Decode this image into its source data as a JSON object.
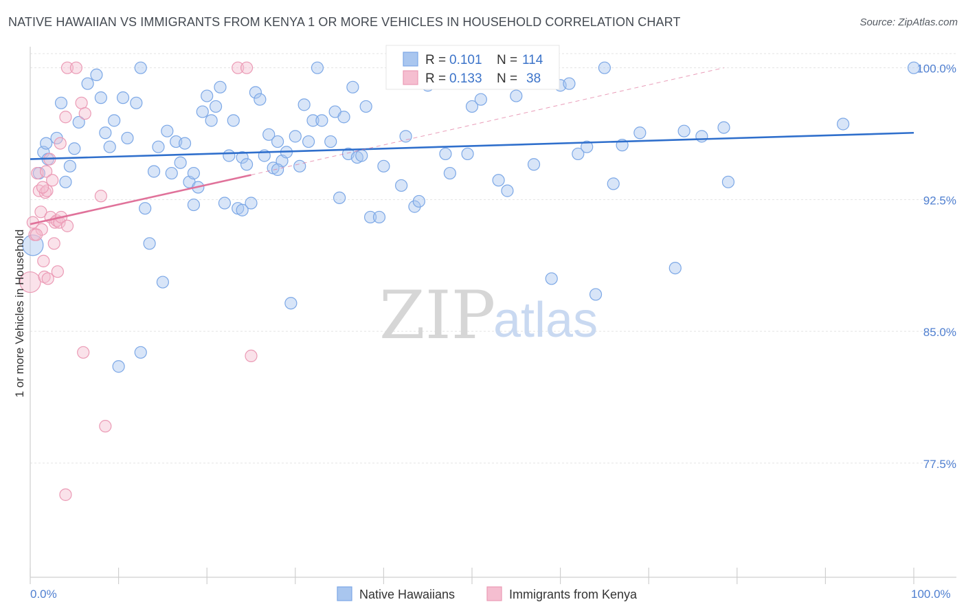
{
  "header": {
    "title": "NATIVE HAWAIIAN VS IMMIGRANTS FROM KENYA 1 OR MORE VEHICLES IN HOUSEHOLD CORRELATION CHART",
    "source": "Source: ZipAtlas.com"
  },
  "watermark": {
    "zip": "ZIP",
    "atlas": "atlas"
  },
  "chart_data": {
    "type": "scatter",
    "title": "NATIVE HAWAIIAN VS IMMIGRANTS FROM KENYA 1 OR MORE VEHICLES IN HOUSEHOLD CORRELATION CHART",
    "xlabel": "",
    "ylabel": "1 or more Vehicles in Household",
    "xlim": [
      0,
      100
    ],
    "ylim": [
      71.0,
      101.2
    ],
    "x_tick_labels": {
      "min": "0.0%",
      "max": "100.0%"
    },
    "y_ticks": [
      {
        "value": 100.0,
        "label": "100.0%"
      },
      {
        "value": 92.5,
        "label": "92.5%"
      },
      {
        "value": 85.0,
        "label": "85.0%"
      },
      {
        "value": 77.5,
        "label": "77.5%"
      }
    ],
    "legend": {
      "rows": [
        {
          "r_label": "R =",
          "r_value": "0.101",
          "n_label": "N =",
          "n_value": "114"
        },
        {
          "r_label": "R =",
          "r_value": "0.133",
          "n_label": "N =",
          "n_value": "38"
        }
      ]
    },
    "series": [
      {
        "name": "Native Hawaiians",
        "color": "#7ba7e6",
        "fill": "#a9c6ef",
        "line_color": "#2f6fcc",
        "trend": {
          "x0": 0,
          "y0": 94.8,
          "x1": 100,
          "y1": 96.3,
          "dashed": false
        },
        "points": [
          [
            0.3,
            89.9
          ],
          [
            1.0,
            94.0
          ],
          [
            1.5,
            95.2
          ],
          [
            1.8,
            95.7
          ],
          [
            2.0,
            94.8
          ],
          [
            3.0,
            96.0
          ],
          [
            3.5,
            98.0
          ],
          [
            4.0,
            93.5
          ],
          [
            4.5,
            94.4
          ],
          [
            5.0,
            95.4
          ],
          [
            5.5,
            96.9
          ],
          [
            6.5,
            99.1
          ],
          [
            7.5,
            99.6
          ],
          [
            8.0,
            98.3
          ],
          [
            8.5,
            96.3
          ],
          [
            9.0,
            95.5
          ],
          [
            9.5,
            97.0
          ],
          [
            10.5,
            98.3
          ],
          [
            11.0,
            96.0
          ],
          [
            12.0,
            98.0
          ],
          [
            12.5,
            100.0
          ],
          [
            13.0,
            92.0
          ],
          [
            13.5,
            90.0
          ],
          [
            14.0,
            94.1
          ],
          [
            14.5,
            95.5
          ],
          [
            15.0,
            87.8
          ],
          [
            15.5,
            96.4
          ],
          [
            16.0,
            94.0
          ],
          [
            16.5,
            95.8
          ],
          [
            17.0,
            94.6
          ],
          [
            17.5,
            95.7
          ],
          [
            18.0,
            93.5
          ],
          [
            18.5,
            92.2
          ],
          [
            19.0,
            93.2
          ],
          [
            19.5,
            97.5
          ],
          [
            20.0,
            98.4
          ],
          [
            20.5,
            97.0
          ],
          [
            21.0,
            97.8
          ],
          [
            21.5,
            98.9
          ],
          [
            22.0,
            92.3
          ],
          [
            22.5,
            95.0
          ],
          [
            23.0,
            97.0
          ],
          [
            23.5,
            92.0
          ],
          [
            24.0,
            94.9
          ],
          [
            24.5,
            94.5
          ],
          [
            25.0,
            92.3
          ],
          [
            25.5,
            98.6
          ],
          [
            26.0,
            98.2
          ],
          [
            26.5,
            95.0
          ],
          [
            27.0,
            96.2
          ],
          [
            27.5,
            94.3
          ],
          [
            28.0,
            95.8
          ],
          [
            28.5,
            94.7
          ],
          [
            29.0,
            95.2
          ],
          [
            29.5,
            86.6
          ],
          [
            30.0,
            96.1
          ],
          [
            30.5,
            94.4
          ],
          [
            31.0,
            97.9
          ],
          [
            31.5,
            95.8
          ],
          [
            32.0,
            97.0
          ],
          [
            32.5,
            100.0
          ],
          [
            33.0,
            97.0
          ],
          [
            34.0,
            95.8
          ],
          [
            34.5,
            97.5
          ],
          [
            35.0,
            92.6
          ],
          [
            35.5,
            97.2
          ],
          [
            36.0,
            95.1
          ],
          [
            36.5,
            98.9
          ],
          [
            37.0,
            94.9
          ],
          [
            37.5,
            95.0
          ],
          [
            38.0,
            97.8
          ],
          [
            38.5,
            91.5
          ],
          [
            39.5,
            91.5
          ],
          [
            40.0,
            94.4
          ],
          [
            41.0,
            100.0
          ],
          [
            42.0,
            93.3
          ],
          [
            42.5,
            96.1
          ],
          [
            43.5,
            92.1
          ],
          [
            44.0,
            92.4
          ],
          [
            45.0,
            99.0
          ],
          [
            46.0,
            99.2
          ],
          [
            47.0,
            95.1
          ],
          [
            47.5,
            94.0
          ],
          [
            48.5,
            99.3
          ],
          [
            49.5,
            95.1
          ],
          [
            50.0,
            97.8
          ],
          [
            51.0,
            98.2
          ],
          [
            53.0,
            93.6
          ],
          [
            54.0,
            93.0
          ],
          [
            55.0,
            98.4
          ],
          [
            57.0,
            94.5
          ],
          [
            59.0,
            88.0
          ],
          [
            60.0,
            99.0
          ],
          [
            61.0,
            99.1
          ],
          [
            62.0,
            95.1
          ],
          [
            63.0,
            95.5
          ],
          [
            64.0,
            87.1
          ],
          [
            65.0,
            100.0
          ],
          [
            66.0,
            93.4
          ],
          [
            67.0,
            95.6
          ],
          [
            69.0,
            96.3
          ],
          [
            73.0,
            88.6
          ],
          [
            74.0,
            96.4
          ],
          [
            76.0,
            96.1
          ],
          [
            78.5,
            96.6
          ],
          [
            79.0,
            93.5
          ],
          [
            92.0,
            96.8
          ],
          [
            100.0,
            100.0
          ],
          [
            28.0,
            94.2
          ],
          [
            24.0,
            91.9
          ],
          [
            10.0,
            83.0
          ],
          [
            12.5,
            83.8
          ],
          [
            18.5,
            94.0
          ],
          [
            45.0,
            100.0
          ]
        ]
      },
      {
        "name": "Immigrants from Kenya",
        "color": "#eb9ab5",
        "fill": "#f5bed0",
        "line_color": "#e0729a",
        "trend": {
          "x0": 0,
          "y0": 91.1,
          "x1": 25.0,
          "y1": 93.9,
          "dashed": false
        },
        "trend_ext": {
          "x0": 25.0,
          "y0": 93.9,
          "x1": 78.5,
          "y1": 100.0,
          "dashed": true
        },
        "points": [
          [
            0.0,
            87.8
          ],
          [
            0.3,
            91.2
          ],
          [
            0.5,
            90.5
          ],
          [
            0.8,
            94.0
          ],
          [
            1.0,
            93.0
          ],
          [
            1.2,
            91.8
          ],
          [
            1.3,
            90.8
          ],
          [
            1.5,
            89.0
          ],
          [
            1.6,
            88.1
          ],
          [
            1.7,
            92.9
          ],
          [
            1.8,
            94.1
          ],
          [
            1.9,
            93.0
          ],
          [
            2.0,
            88.0
          ],
          [
            2.2,
            94.8
          ],
          [
            2.3,
            91.5
          ],
          [
            2.5,
            93.6
          ],
          [
            2.7,
            90.0
          ],
          [
            2.8,
            91.2
          ],
          [
            3.0,
            91.3
          ],
          [
            3.1,
            88.4
          ],
          [
            3.3,
            91.2
          ],
          [
            3.4,
            95.7
          ],
          [
            3.5,
            91.5
          ],
          [
            4.0,
            97.2
          ],
          [
            4.2,
            91.0
          ],
          [
            4.2,
            100.0
          ],
          [
            5.2,
            100.0
          ],
          [
            5.8,
            98.0
          ],
          [
            6.2,
            97.4
          ],
          [
            8.0,
            92.7
          ],
          [
            23.5,
            100.0
          ],
          [
            24.5,
            100.0
          ],
          [
            25.0,
            83.6
          ],
          [
            6.0,
            83.8
          ],
          [
            8.5,
            79.6
          ],
          [
            4.0,
            75.7
          ],
          [
            0.7,
            90.5
          ],
          [
            1.4,
            93.2
          ]
        ]
      }
    ]
  },
  "bottom_legend": {
    "items": [
      {
        "label": "Native Hawaiians"
      },
      {
        "label": "Immigrants from Kenya"
      }
    ]
  }
}
